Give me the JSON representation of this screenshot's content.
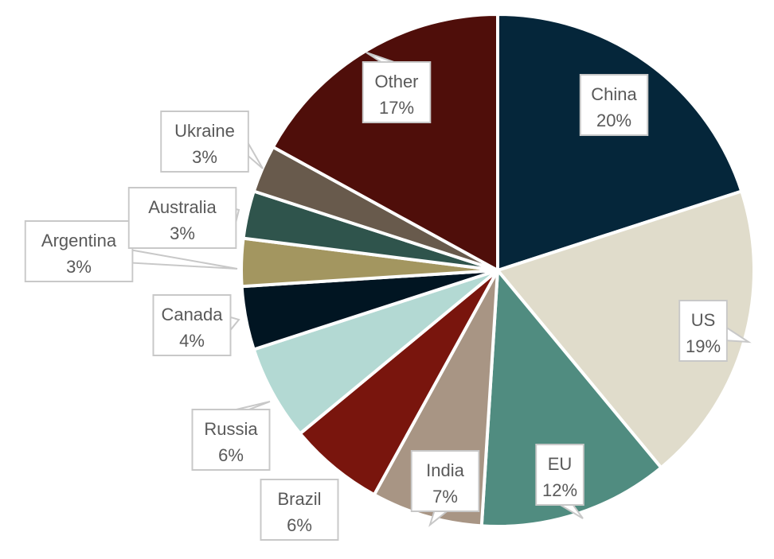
{
  "chart_data": {
    "type": "pie",
    "title": "",
    "start_angle_deg": 0,
    "direction": "clockwise",
    "legend": "none",
    "slices": [
      {
        "name": "China",
        "value": 20,
        "label": "20%",
        "color": "#05263A"
      },
      {
        "name": "US",
        "value": 19,
        "label": "19%",
        "color": "#E0DCCB"
      },
      {
        "name": "EU",
        "value": 12,
        "label": "12%",
        "color": "#508C80"
      },
      {
        "name": "India",
        "value": 7,
        "label": "7%",
        "color": "#A89584"
      },
      {
        "name": "Brazil",
        "value": 6,
        "label": "6%",
        "color": "#79150D"
      },
      {
        "name": "Russia",
        "value": 6,
        "label": "6%",
        "color": "#B3D9D3"
      },
      {
        "name": "Canada",
        "value": 4,
        "label": "4%",
        "color": "#011522"
      },
      {
        "name": "Argentina",
        "value": 3,
        "label": "3%",
        "color": "#A39660"
      },
      {
        "name": "Australia",
        "value": 3,
        "label": "3%",
        "color": "#2F544C"
      },
      {
        "name": "Ukraine",
        "value": 3,
        "label": "3%",
        "color": "#685A4C"
      },
      {
        "name": "Other",
        "value": 17,
        "label": "17%",
        "color": "#4F0E0A"
      }
    ]
  }
}
